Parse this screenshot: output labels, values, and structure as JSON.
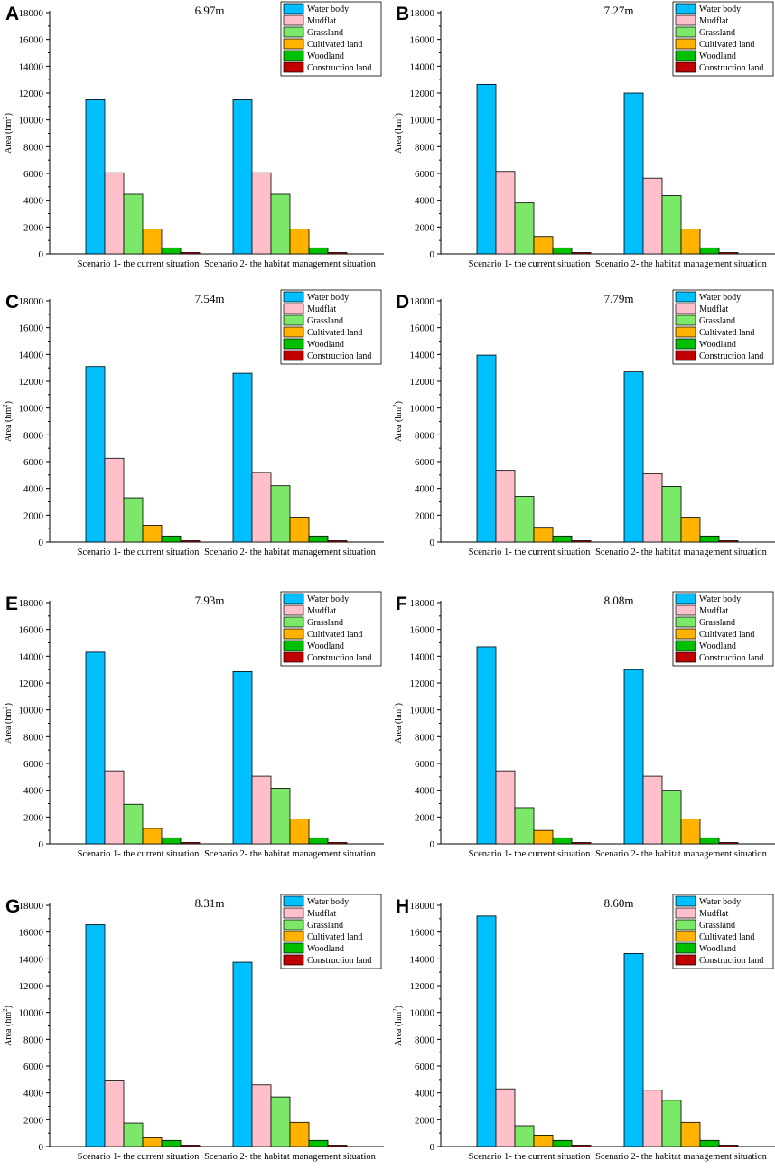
{
  "figure": {
    "series_names": [
      "Water body",
      "Mudflat",
      "Grassland",
      "Cultivated land",
      "Woodland",
      "Construction land"
    ],
    "series_colors": [
      "#00BFFF",
      "#FFC0CB",
      "#7CE86A",
      "#FFB300",
      "#00C000",
      "#C00000"
    ],
    "ylabel_main": "Area (hm",
    "ylabel_sup": "2",
    "ylabel_tail": ")",
    "y_ticks": [
      "0",
      "2000",
      "4000",
      "6000",
      "8000",
      "10000",
      "12000",
      "14000",
      "16000",
      "18000"
    ]
  },
  "chart_data": [
    {
      "panel": "A",
      "title": "6.97m",
      "type": "bar",
      "categories": [
        "Scenario 1- the current situation",
        "Scenario 2- the habitat management situation"
      ],
      "ylim": [
        0,
        18000
      ],
      "series": [
        {
          "name": "Water body",
          "values": [
            11500,
            11500
          ]
        },
        {
          "name": "Mudflat",
          "values": [
            6050,
            6050
          ]
        },
        {
          "name": "Grassland",
          "values": [
            4450,
            4450
          ]
        },
        {
          "name": "Cultivated land",
          "values": [
            1850,
            1850
          ]
        },
        {
          "name": "Woodland",
          "values": [
            450,
            450
          ]
        },
        {
          "name": "Construction land",
          "values": [
            100,
            100
          ]
        }
      ]
    },
    {
      "panel": "B",
      "title": "7.27m",
      "type": "bar",
      "categories": [
        "Scenario 1- the current situation",
        "Scenario 2- the habitat management situation"
      ],
      "ylim": [
        0,
        18000
      ],
      "series": [
        {
          "name": "Water body",
          "values": [
            12650,
            12000
          ]
        },
        {
          "name": "Mudflat",
          "values": [
            6150,
            5650
          ]
        },
        {
          "name": "Grassland",
          "values": [
            3800,
            4350
          ]
        },
        {
          "name": "Cultivated land",
          "values": [
            1300,
            1850
          ]
        },
        {
          "name": "Woodland",
          "values": [
            450,
            450
          ]
        },
        {
          "name": "Construction land",
          "values": [
            100,
            100
          ]
        }
      ]
    },
    {
      "panel": "C",
      "title": "7.54m",
      "type": "bar",
      "categories": [
        "Scenario 1- the current situation",
        "Scenario 2- the habitat management situation"
      ],
      "ylim": [
        0,
        18000
      ],
      "series": [
        {
          "name": "Water body",
          "values": [
            13100,
            12600
          ]
        },
        {
          "name": "Mudflat",
          "values": [
            6250,
            5200
          ]
        },
        {
          "name": "Grassland",
          "values": [
            3300,
            4200
          ]
        },
        {
          "name": "Cultivated land",
          "values": [
            1250,
            1850
          ]
        },
        {
          "name": "Woodland",
          "values": [
            450,
            450
          ]
        },
        {
          "name": "Construction land",
          "values": [
            100,
            100
          ]
        }
      ]
    },
    {
      "panel": "D",
      "title": "7.79m",
      "type": "bar",
      "categories": [
        "Scenario 1- the current situation",
        "Scenario 2- the habitat management situation"
      ],
      "ylim": [
        0,
        18000
      ],
      "series": [
        {
          "name": "Water body",
          "values": [
            13950,
            12700
          ]
        },
        {
          "name": "Mudflat",
          "values": [
            5350,
            5100
          ]
        },
        {
          "name": "Grassland",
          "values": [
            3400,
            4150
          ]
        },
        {
          "name": "Cultivated land",
          "values": [
            1100,
            1850
          ]
        },
        {
          "name": "Woodland",
          "values": [
            450,
            450
          ]
        },
        {
          "name": "Construction land",
          "values": [
            100,
            100
          ]
        }
      ]
    },
    {
      "panel": "E",
      "title": "7.93m",
      "type": "bar",
      "categories": [
        "Scenario 1- the current situation",
        "Scenario 2- the habitat management situation"
      ],
      "ylim": [
        0,
        18000
      ],
      "series": [
        {
          "name": "Water body",
          "values": [
            14300,
            12850
          ]
        },
        {
          "name": "Mudflat",
          "values": [
            5450,
            5050
          ]
        },
        {
          "name": "Grassland",
          "values": [
            2950,
            4150
          ]
        },
        {
          "name": "Cultivated land",
          "values": [
            1150,
            1850
          ]
        },
        {
          "name": "Woodland",
          "values": [
            450,
            450
          ]
        },
        {
          "name": "Construction land",
          "values": [
            100,
            100
          ]
        }
      ]
    },
    {
      "panel": "F",
      "title": "8.08m",
      "type": "bar",
      "categories": [
        "Scenario 1- the current situation",
        "Scenario 2- the habitat management situation"
      ],
      "ylim": [
        0,
        18000
      ],
      "series": [
        {
          "name": "Water body",
          "values": [
            14700,
            13000
          ]
        },
        {
          "name": "Mudflat",
          "values": [
            5450,
            5050
          ]
        },
        {
          "name": "Grassland",
          "values": [
            2700,
            4000
          ]
        },
        {
          "name": "Cultivated land",
          "values": [
            1000,
            1850
          ]
        },
        {
          "name": "Woodland",
          "values": [
            450,
            450
          ]
        },
        {
          "name": "Construction land",
          "values": [
            100,
            100
          ]
        }
      ]
    },
    {
      "panel": "G",
      "title": "8.31m",
      "type": "bar",
      "categories": [
        "Scenario 1- the current situation",
        "Scenario 2- the habitat management situation"
      ],
      "ylim": [
        0,
        18000
      ],
      "series": [
        {
          "name": "Water body",
          "values": [
            16550,
            13750
          ]
        },
        {
          "name": "Mudflat",
          "values": [
            4950,
            4600
          ]
        },
        {
          "name": "Grassland",
          "values": [
            1750,
            3700
          ]
        },
        {
          "name": "Cultivated land",
          "values": [
            650,
            1800
          ]
        },
        {
          "name": "Woodland",
          "values": [
            450,
            450
          ]
        },
        {
          "name": "Construction land",
          "values": [
            100,
            100
          ]
        }
      ]
    },
    {
      "panel": "H",
      "title": "8.60m",
      "type": "bar",
      "categories": [
        "Scenario 1- the current situation",
        "Scenario 2- the habitat management situation"
      ],
      "ylim": [
        0,
        18000
      ],
      "series": [
        {
          "name": "Water body",
          "values": [
            17200,
            14400
          ]
        },
        {
          "name": "Mudflat",
          "values": [
            4300,
            4200
          ]
        },
        {
          "name": "Grassland",
          "values": [
            1550,
            3450
          ]
        },
        {
          "name": "Cultivated land",
          "values": [
            850,
            1800
          ]
        },
        {
          "name": "Woodland",
          "values": [
            450,
            450
          ]
        },
        {
          "name": "Construction land",
          "values": [
            100,
            100
          ]
        }
      ]
    }
  ]
}
